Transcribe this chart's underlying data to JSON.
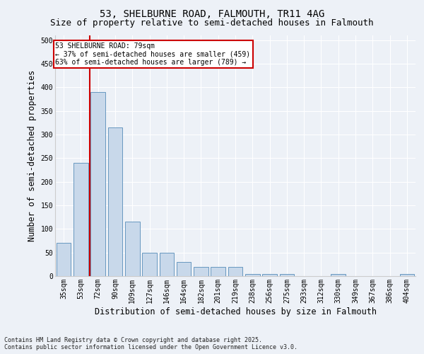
{
  "title_line1": "53, SHELBURNE ROAD, FALMOUTH, TR11 4AG",
  "title_line2": "Size of property relative to semi-detached houses in Falmouth",
  "xlabel": "Distribution of semi-detached houses by size in Falmouth",
  "ylabel": "Number of semi-detached properties",
  "categories": [
    "35sqm",
    "53sqm",
    "72sqm",
    "90sqm",
    "109sqm",
    "127sqm",
    "146sqm",
    "164sqm",
    "182sqm",
    "201sqm",
    "219sqm",
    "238sqm",
    "256sqm",
    "275sqm",
    "293sqm",
    "312sqm",
    "330sqm",
    "349sqm",
    "367sqm",
    "386sqm",
    "404sqm"
  ],
  "bar_heights": [
    70,
    240,
    390,
    315,
    115,
    50,
    50,
    30,
    20,
    20,
    20,
    5,
    5,
    5,
    0,
    0,
    5,
    0,
    0,
    0,
    5
  ],
  "bar_color": "#c8d8ea",
  "bar_edge_color": "#6898c0",
  "vline_x_index": 2,
  "vline_color": "#cc0000",
  "annotation_text": "53 SHELBURNE ROAD: 79sqm\n← 37% of semi-detached houses are smaller (459)\n63% of semi-detached houses are larger (789) →",
  "annotation_box_color": "#ffffff",
  "annotation_box_edge": "#cc0000",
  "ylim": [
    0,
    510
  ],
  "yticks": [
    0,
    50,
    100,
    150,
    200,
    250,
    300,
    350,
    400,
    450,
    500
  ],
  "background_color": "#edf1f7",
  "plot_bg_color": "#edf1f7",
  "footer": "Contains HM Land Registry data © Crown copyright and database right 2025.\nContains public sector information licensed under the Open Government Licence v3.0.",
  "grid_color": "#ffffff",
  "title_fontsize": 10,
  "subtitle_fontsize": 9,
  "tick_fontsize": 7,
  "label_fontsize": 8.5,
  "footer_fontsize": 6
}
